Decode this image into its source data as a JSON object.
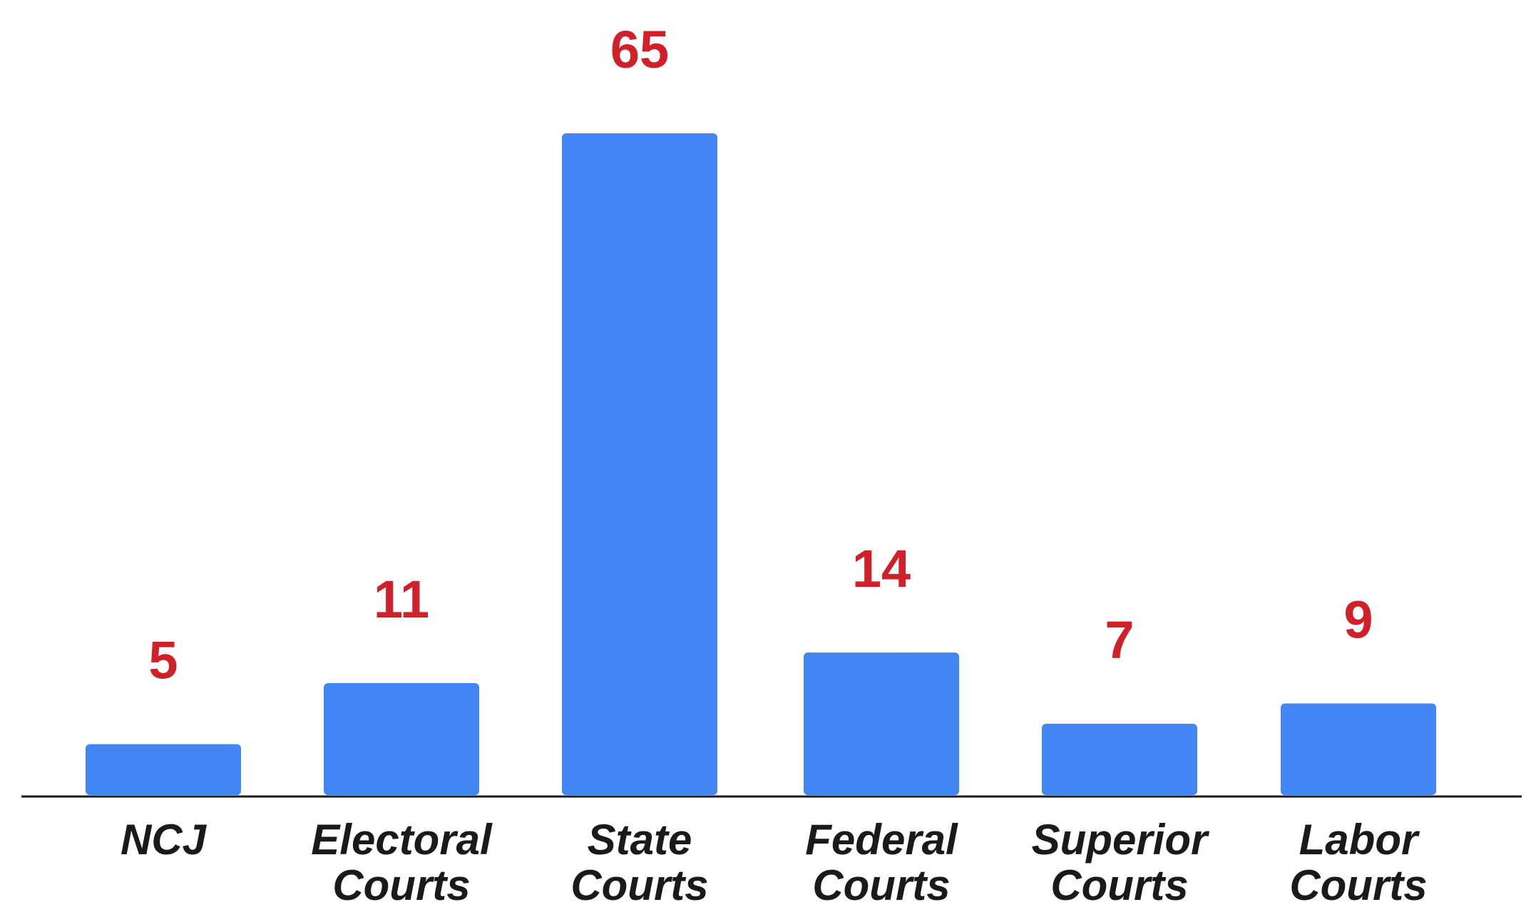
{
  "chart_data": {
    "type": "bar",
    "categories": [
      [
        "NCJ"
      ],
      [
        "Electoral",
        "Courts"
      ],
      [
        "State",
        "Courts"
      ],
      [
        "Federal",
        "Courts"
      ],
      [
        "Superior",
        "Courts"
      ],
      [
        "Labor",
        "Courts"
      ]
    ],
    "values": [
      5,
      11,
      65,
      14,
      7,
      9
    ],
    "data_labels": [
      "5",
      "11",
      "65",
      "14",
      "7",
      "9"
    ],
    "ylim": [
      0,
      65
    ],
    "grid": false,
    "legend": "none",
    "colors": {
      "bar": "#4285F4",
      "value_label": "#D0202A",
      "axis": "#1a1a1a",
      "category_label": "#1a1a1a"
    }
  }
}
